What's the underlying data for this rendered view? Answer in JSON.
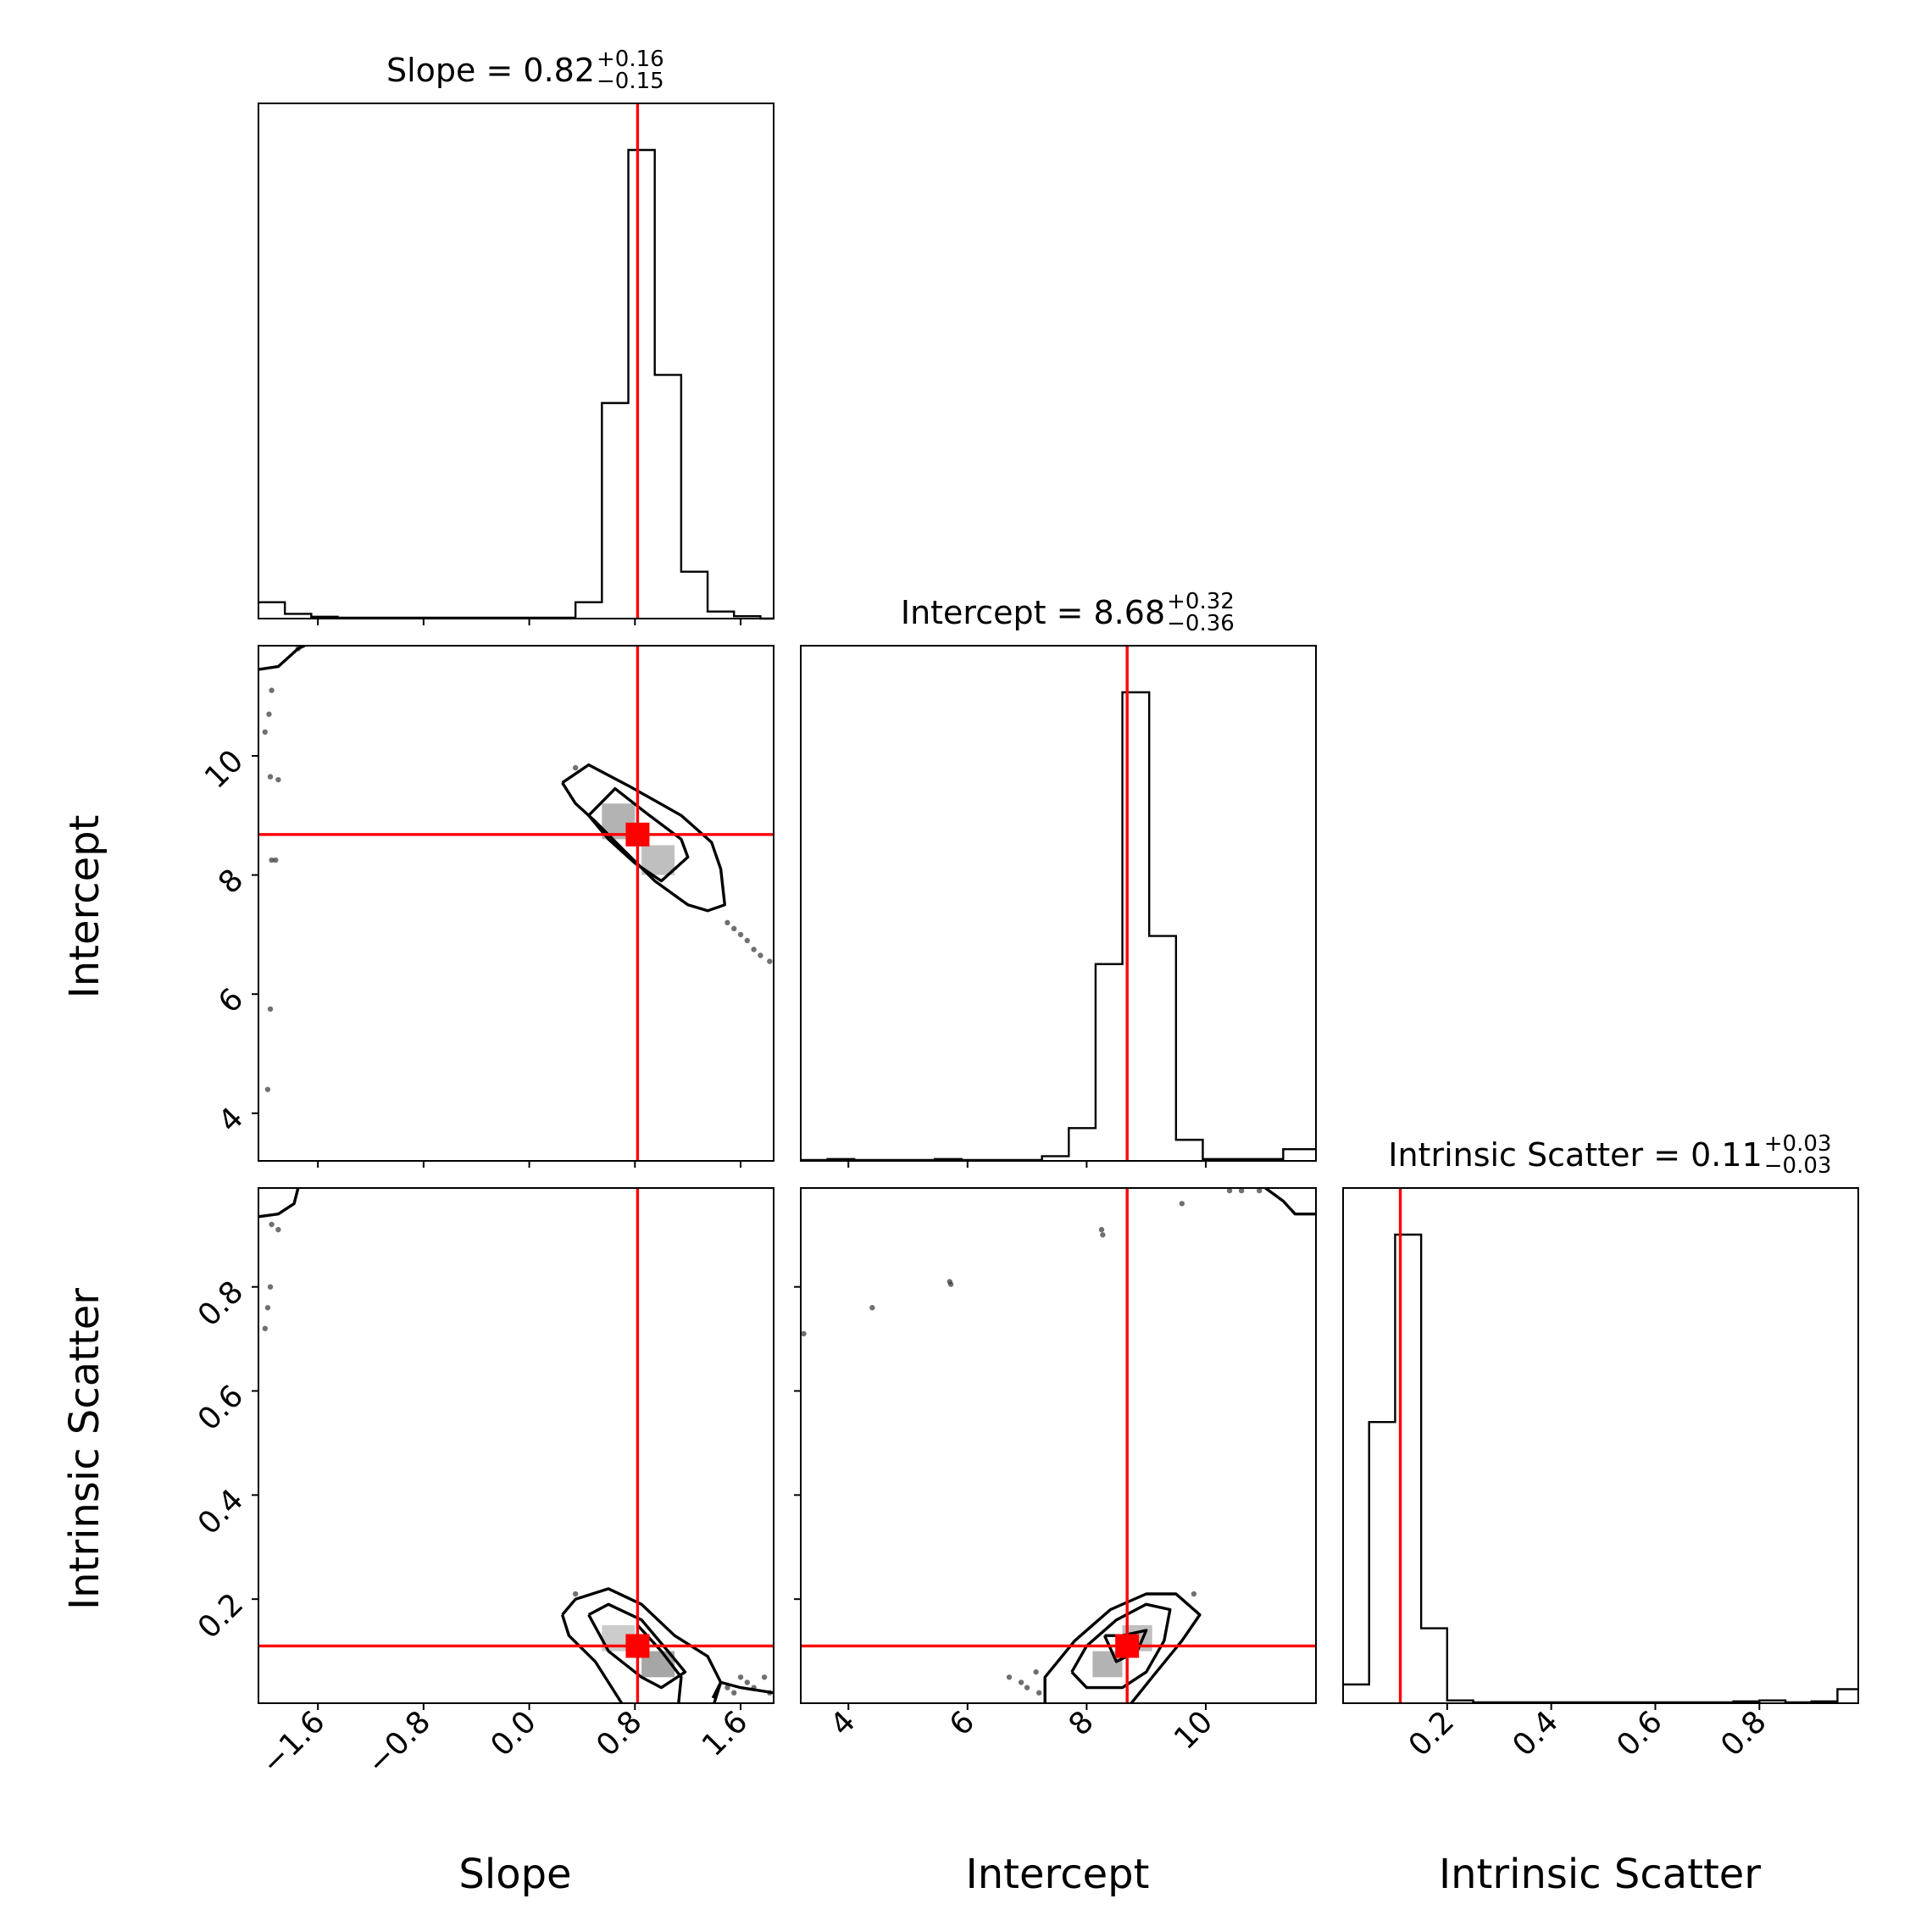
{
  "chart_data": {
    "type": "corner",
    "parameters": [
      "Slope",
      "Intercept",
      "Intrinsic Scatter"
    ],
    "truths": [
      0.82,
      8.68,
      0.11
    ],
    "truth_color": "#ff0000",
    "titles": [
      {
        "label": "Slope",
        "median": "0.82",
        "plus": "+0.16",
        "minus": "−0.15"
      },
      {
        "label": "Intercept",
        "median": "8.68",
        "plus": "+0.32",
        "minus": "−0.36"
      },
      {
        "label": "Intrinsic Scatter",
        "median": "0.11",
        "plus": "+0.03",
        "minus": "−0.03"
      }
    ],
    "ranges": [
      [
        -2.05,
        1.85
      ],
      [
        3.2,
        11.85
      ],
      [
        0.0,
        0.99
      ]
    ],
    "ticks": [
      {
        "values": [
          -1.6,
          -0.8,
          0.0,
          0.8,
          1.6
        ],
        "labels": [
          "−1.6",
          "−0.8",
          "0.0",
          "0.8",
          "1.6"
        ]
      },
      {
        "values": [
          4,
          6,
          8,
          10
        ],
        "labels": [
          "4",
          "6",
          "8",
          "10"
        ]
      },
      {
        "values": [
          0.2,
          0.4,
          0.6,
          0.8
        ],
        "labels": [
          "0.2",
          "0.4",
          "0.6",
          "0.8"
        ]
      }
    ],
    "histograms": [
      {
        "parameter": "Slope",
        "bin_edges": [
          -2.05,
          -1.85,
          -1.65,
          -1.45,
          -1.25,
          -1.05,
          -0.85,
          -0.65,
          -0.45,
          -0.25,
          -0.05,
          0.15,
          0.35,
          0.55,
          0.75,
          0.95,
          1.15,
          1.35,
          1.55,
          1.75,
          1.85
        ],
        "counts": [
          0.035,
          0.01,
          0.004,
          0.002,
          0.002,
          0.002,
          0.002,
          0.002,
          0.002,
          0.002,
          0.002,
          0.002,
          0.035,
          0.46,
          1.0,
          0.52,
          0.1,
          0.015,
          0.005,
          0.0
        ]
      },
      {
        "parameter": "Intercept",
        "bin_edges": [
          3.2,
          3.65,
          4.1,
          4.55,
          5.0,
          5.45,
          5.9,
          6.35,
          6.8,
          7.25,
          7.7,
          8.15,
          8.6,
          9.05,
          9.5,
          9.95,
          10.4,
          10.85,
          11.3,
          11.85
        ],
        "counts": [
          0.002,
          0.004,
          0.002,
          0.002,
          0.002,
          0.004,
          0.002,
          0.002,
          0.002,
          0.01,
          0.07,
          0.42,
          1.0,
          0.48,
          0.045,
          0.004,
          0.004,
          0.004,
          0.025
        ]
      },
      {
        "parameter": "Intrinsic Scatter",
        "bin_edges": [
          0.0,
          0.05,
          0.1,
          0.15,
          0.2,
          0.25,
          0.3,
          0.35,
          0.4,
          0.45,
          0.5,
          0.55,
          0.6,
          0.65,
          0.7,
          0.75,
          0.8,
          0.85,
          0.9,
          0.95,
          0.99
        ],
        "counts": [
          0.04,
          0.6,
          1.0,
          0.16,
          0.006,
          0.002,
          0.002,
          0.002,
          0.002,
          0.002,
          0.002,
          0.002,
          0.002,
          0.002,
          0.002,
          0.004,
          0.006,
          0.002,
          0.004,
          0.03
        ]
      }
    ],
    "pairs": [
      {
        "x": "Slope",
        "y": "Intercept",
        "density_cells": [
          {
            "x0": 0.55,
            "x1": 0.8,
            "y0": 8.6,
            "y1": 9.2,
            "shade": 0.3
          },
          {
            "x0": 0.85,
            "x1": 1.1,
            "y0": 8.0,
            "y1": 8.5,
            "shade": 0.25
          }
        ],
        "contours": [
          [
            [
              0.25,
              9.55
            ],
            [
              0.45,
              9.85
            ],
            [
              0.75,
              9.5
            ],
            [
              1.15,
              9.0
            ],
            [
              1.38,
              8.55
            ],
            [
              1.45,
              8.1
            ],
            [
              1.48,
              7.5
            ],
            [
              1.35,
              7.4
            ],
            [
              1.2,
              7.5
            ],
            [
              0.95,
              7.9
            ],
            [
              0.7,
              8.45
            ],
            [
              0.5,
              8.9
            ],
            [
              0.35,
              9.2
            ],
            [
              0.25,
              9.55
            ]
          ],
          [
            [
              0.45,
              9.0
            ],
            [
              0.65,
              9.45
            ],
            [
              0.88,
              9.05
            ],
            [
              1.15,
              8.6
            ],
            [
              1.2,
              8.3
            ],
            [
              1.0,
              7.9
            ],
            [
              0.8,
              8.2
            ],
            [
              0.6,
              8.6
            ],
            [
              0.45,
              9.0
            ]
          ]
        ],
        "outlier_contours": [
          [
            [
              -2.05,
              11.45
            ],
            [
              -1.9,
              11.5
            ],
            [
              -1.75,
              11.8
            ],
            [
              -1.7,
              11.85
            ]
          ]
        ],
        "points": [
          [
            -1.95,
            11.1
          ],
          [
            -1.97,
            10.7
          ],
          [
            -2.0,
            10.4
          ],
          [
            -1.96,
            9.65
          ],
          [
            -1.9,
            9.6
          ],
          [
            -1.95,
            8.25
          ],
          [
            -1.92,
            8.25
          ],
          [
            -1.96,
            5.75
          ],
          [
            -1.98,
            4.4
          ],
          [
            -1.75,
            11.8
          ],
          [
            1.5,
            7.2
          ],
          [
            1.55,
            7.1
          ],
          [
            1.6,
            7.0
          ],
          [
            1.65,
            6.9
          ],
          [
            1.7,
            6.75
          ],
          [
            1.75,
            6.65
          ],
          [
            1.82,
            6.55
          ],
          [
            0.35,
            9.8
          ]
        ]
      },
      {
        "x": "Slope",
        "y": "Intrinsic Scatter",
        "density_cells": [
          {
            "x0": 0.55,
            "x1": 0.8,
            "y0": 0.1,
            "y1": 0.15,
            "shade": 0.2
          },
          {
            "x0": 0.85,
            "x1": 1.1,
            "y0": 0.05,
            "y1": 0.1,
            "shade": 0.35
          }
        ],
        "contours": [
          [
            [
              0.25,
              0.17
            ],
            [
              0.35,
              0.2
            ],
            [
              0.6,
              0.22
            ],
            [
              0.85,
              0.19
            ],
            [
              1.1,
              0.13
            ],
            [
              1.35,
              0.09
            ],
            [
              1.45,
              0.04
            ],
            [
              1.4,
              0.0
            ]
          ],
          [
            [
              0.25,
              0.17
            ],
            [
              0.3,
              0.13
            ],
            [
              0.5,
              0.08
            ],
            [
              0.7,
              0.0
            ]
          ],
          [
            [
              1.13,
              0.0
            ],
            [
              1.15,
              0.05
            ],
            [
              1.0,
              0.1
            ],
            [
              0.82,
              0.15
            ]
          ],
          [
            [
              0.45,
              0.17
            ],
            [
              0.6,
              0.19
            ],
            [
              0.85,
              0.16
            ],
            [
              1.05,
              0.1
            ],
            [
              1.18,
              0.06
            ],
            [
              1.0,
              0.03
            ],
            [
              0.85,
              0.05
            ],
            [
              0.6,
              0.1
            ],
            [
              0.45,
              0.17
            ]
          ],
          [
            [
              1.39,
              0.01
            ],
            [
              1.45,
              0.04
            ],
            [
              1.6,
              0.03
            ],
            [
              1.85,
              0.02
            ]
          ]
        ],
        "outlier_contours": [
          [
            [
              -2.05,
              0.935
            ],
            [
              -1.9,
              0.94
            ],
            [
              -1.78,
              0.96
            ],
            [
              -1.75,
              0.99
            ]
          ]
        ],
        "points": [
          [
            -1.96,
            0.8
          ],
          [
            -1.98,
            0.76
          ],
          [
            -2.0,
            0.72
          ],
          [
            -1.9,
            0.91
          ],
          [
            -1.95,
            0.92
          ],
          [
            1.5,
            0.03
          ],
          [
            1.55,
            0.02
          ],
          [
            1.6,
            0.05
          ],
          [
            1.65,
            0.04
          ],
          [
            1.7,
            0.03
          ],
          [
            1.78,
            0.05
          ],
          [
            1.82,
            0.02
          ],
          [
            0.35,
            0.21
          ]
        ]
      },
      {
        "x": "Intercept",
        "y": "Intrinsic Scatter",
        "density_cells": [
          {
            "x0": 8.1,
            "x1": 8.6,
            "y0": 0.05,
            "y1": 0.1,
            "shade": 0.3
          },
          {
            "x0": 8.6,
            "x1": 9.1,
            "y0": 0.1,
            "y1": 0.15,
            "shade": 0.25
          }
        ],
        "contours": [
          [
            [
              7.3,
              0.0
            ],
            [
              7.3,
              0.05
            ],
            [
              7.8,
              0.12
            ],
            [
              8.4,
              0.18
            ],
            [
              9.0,
              0.21
            ],
            [
              9.5,
              0.21
            ],
            [
              9.9,
              0.17
            ],
            [
              9.6,
              0.12
            ],
            [
              9.1,
              0.05
            ],
            [
              8.75,
              0.0
            ]
          ],
          [
            [
              7.75,
              0.06
            ],
            [
              8.0,
              0.11
            ],
            [
              8.5,
              0.16
            ],
            [
              9.0,
              0.19
            ],
            [
              9.4,
              0.18
            ],
            [
              9.3,
              0.12
            ],
            [
              9.0,
              0.06
            ],
            [
              8.6,
              0.03
            ],
            [
              8.0,
              0.03
            ],
            [
              7.75,
              0.06
            ]
          ],
          [
            [
              8.3,
              0.13
            ],
            [
              8.6,
              0.13
            ],
            [
              9.0,
              0.14
            ],
            [
              8.85,
              0.1
            ],
            [
              8.5,
              0.08
            ],
            [
              8.3,
              0.13
            ]
          ]
        ],
        "outlier_contours": [
          [
            [
              11.0,
              0.99
            ],
            [
              11.3,
              0.965
            ],
            [
              11.5,
              0.94
            ],
            [
              11.85,
              0.94
            ]
          ]
        ],
        "points": [
          [
            4.4,
            0.76
          ],
          [
            5.7,
            0.81
          ],
          [
            5.72,
            0.805
          ],
          [
            8.25,
            0.91
          ],
          [
            8.27,
            0.9
          ],
          [
            9.6,
            0.96
          ],
          [
            10.4,
            0.985
          ],
          [
            10.6,
            0.985
          ],
          [
            10.9,
            0.985
          ],
          [
            3.25,
            0.71
          ],
          [
            6.7,
            0.05
          ],
          [
            6.9,
            0.04
          ],
          [
            7.0,
            0.03
          ],
          [
            7.2,
            0.02
          ],
          [
            7.15,
            0.06
          ],
          [
            9.8,
            0.21
          ]
        ]
      }
    ]
  },
  "labels": {
    "x_axis": [
      "Slope",
      "Intercept",
      "Intrinsic Scatter"
    ],
    "y_axis": [
      "Intercept",
      "Intrinsic Scatter"
    ]
  }
}
